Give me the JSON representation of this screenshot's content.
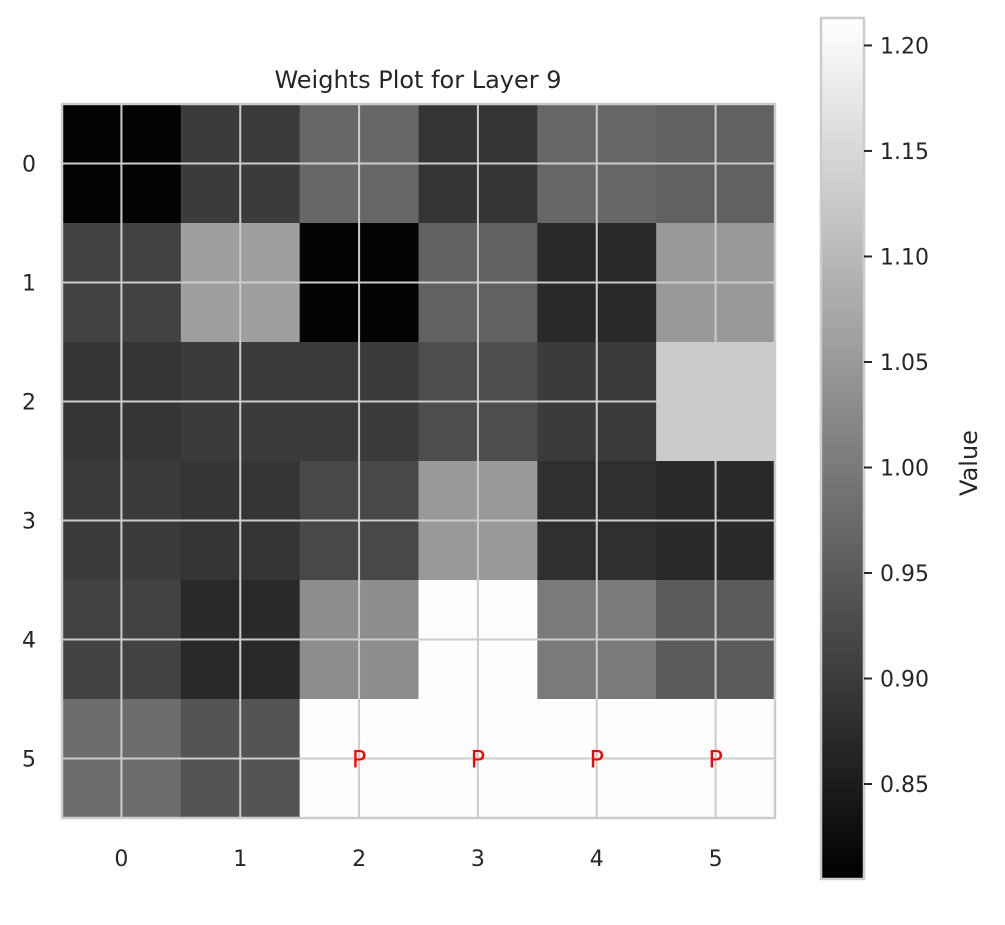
{
  "chart_data": {
    "type": "heatmap",
    "title": "Weights Plot for Layer 9",
    "colormap": "gray",
    "grid": true,
    "x_ticks": [
      "0",
      "1",
      "2",
      "3",
      "4",
      "5"
    ],
    "y_ticks": [
      "0",
      "1",
      "2",
      "3",
      "4",
      "5"
    ],
    "values": [
      [
        0.81,
        0.9,
        0.97,
        0.89,
        0.97,
        0.96
      ],
      [
        0.91,
        1.06,
        0.81,
        0.96,
        0.87,
        1.05
      ],
      [
        0.89,
        0.9,
        0.9,
        0.93,
        0.9,
        1.13
      ],
      [
        0.9,
        0.89,
        0.92,
        1.05,
        0.88,
        0.87
      ],
      [
        0.91,
        0.87,
        1.03,
        1.21,
        1.0,
        0.95
      ],
      [
        0.98,
        0.94,
        1.21,
        1.21,
        1.21,
        1.21
      ]
    ],
    "annotations": [
      {
        "row": 5,
        "col": 2,
        "text": "P"
      },
      {
        "row": 5,
        "col": 3,
        "text": "P"
      },
      {
        "row": 5,
        "col": 4,
        "text": "P"
      },
      {
        "row": 5,
        "col": 5,
        "text": "P"
      }
    ],
    "colorbar": {
      "label": "Value",
      "vmin": 0.805,
      "vmax": 1.213,
      "ticks": [
        "0.85",
        "0.90",
        "0.95",
        "1.00",
        "1.05",
        "1.10",
        "1.15",
        "1.20"
      ],
      "colors": {
        "low": "#000000",
        "high": "#ffffff"
      }
    }
  }
}
